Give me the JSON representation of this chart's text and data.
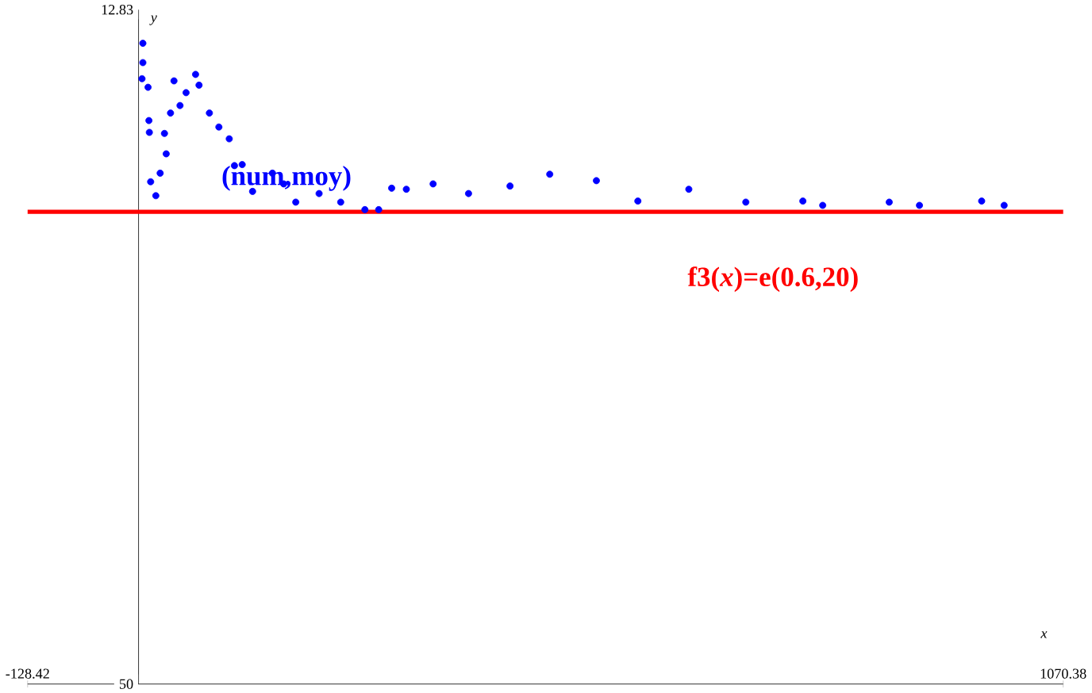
{
  "chart_data": {
    "type": "scatter",
    "xlabel": "x",
    "ylabel": "y",
    "xlim": [
      -128.42,
      1070.38
    ],
    "ylim": [
      -50,
      12.83
    ],
    "xticks": [
      {
        "value": -128.42,
        "label": "-128.42"
      },
      {
        "value": 1070.38,
        "label": "1070.38"
      }
    ],
    "yticks": [
      {
        "value": 12.83,
        "label": "12.83"
      },
      {
        "value": -50,
        "label": "50"
      }
    ],
    "marker": "circle",
    "grid": false,
    "legend": false,
    "series": [
      {
        "name": "(num,moy)",
        "color": "#0000ff",
        "x": [
          4,
          5,
          5,
          11,
          12,
          12.5,
          14,
          20,
          25,
          30,
          32,
          37,
          41,
          48,
          55,
          66,
          70,
          82,
          93,
          105,
          111,
          120,
          132,
          155,
          168,
          182,
          209,
          234,
          262,
          278,
          293,
          310,
          341,
          382,
          430,
          476,
          530,
          578,
          637,
          703,
          769,
          792,
          869,
          904,
          976,
          1002
        ],
        "values": [
          6.4,
          9.7,
          7.9,
          5.6,
          2.5,
          1.4,
          -3.2,
          -4.5,
          -2.4,
          1.3,
          -0.6,
          3.2,
          6.2,
          3.9,
          5.1,
          6.8,
          5.8,
          3.2,
          1.9,
          0.8,
          -1.7,
          -1.6,
          -4.1,
          -2.4,
          -3.4,
          -5.1,
          -4.3,
          -5.1,
          -5.8,
          -5.8,
          -3.8,
          -3.9,
          -3.4,
          -4.3,
          -3.6,
          -2.5,
          -3.1,
          -5.0,
          -3.9,
          -5.1,
          -5.0,
          -5.4,
          -5.1,
          -5.4,
          -5.0,
          -5.4
        ]
      }
    ],
    "ref_lines": [
      {
        "axis": "y",
        "value": -6,
        "label": "f3(*x*)=e(0.6,20)",
        "color": "#ff0000"
      }
    ]
  }
}
